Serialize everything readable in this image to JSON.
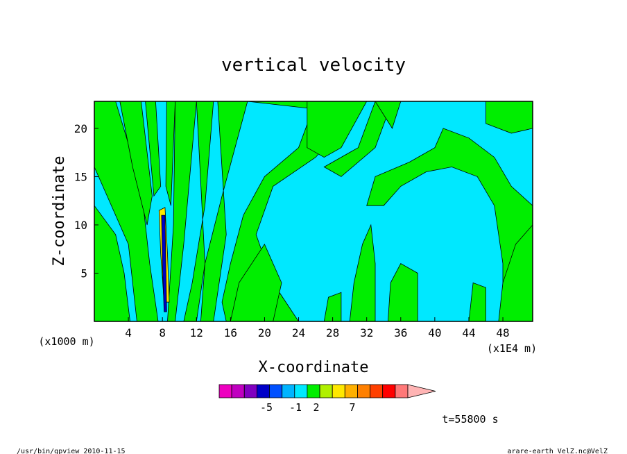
{
  "chart_data": {
    "type": "heatmap",
    "title": "vertical velocity",
    "xlabel": "X-coordinate",
    "ylabel": "Z-coordinate",
    "x_unit_left": "(x1000 m)",
    "x_unit_right": "(x1E4 m)",
    "xlim": [
      0,
      51.5
    ],
    "ylim": [
      0,
      22.8
    ],
    "x_ticks": [
      "4",
      "8",
      "12",
      "16",
      "20",
      "24",
      "28",
      "32",
      "36",
      "40",
      "44",
      "48"
    ],
    "x_tick_values": [
      4,
      8,
      12,
      16,
      20,
      24,
      28,
      32,
      36,
      40,
      44,
      48
    ],
    "y_ticks": [
      "5",
      "10",
      "15",
      "20"
    ],
    "y_tick_values": [
      5,
      10,
      15,
      20
    ],
    "time_label": "t=55800 s",
    "colorbar": {
      "colors": [
        "#ee00c0",
        "#c000c0",
        "#8000c0",
        "#0000c8",
        "#0050ff",
        "#00b4ff",
        "#00e8ff",
        "#00ee00",
        "#b0f000",
        "#ffe800",
        "#ffb000",
        "#ff8000",
        "#ff4000",
        "#ff0000",
        "#ff7878",
        "#ffb4b4"
      ],
      "tick_labels": [
        "-5",
        "-1",
        "2",
        "7"
      ]
    },
    "field_colors": {
      "positive": "#00ee00",
      "negative": "#00e8ff",
      "strong_up": "#ffe800",
      "strong_down": "#0000c8",
      "contour": "#000000"
    }
  },
  "footer": {
    "left": "/usr/bin/gpview   2010-11-15",
    "right": "arare-earth_VelZ.nc@VelZ"
  }
}
